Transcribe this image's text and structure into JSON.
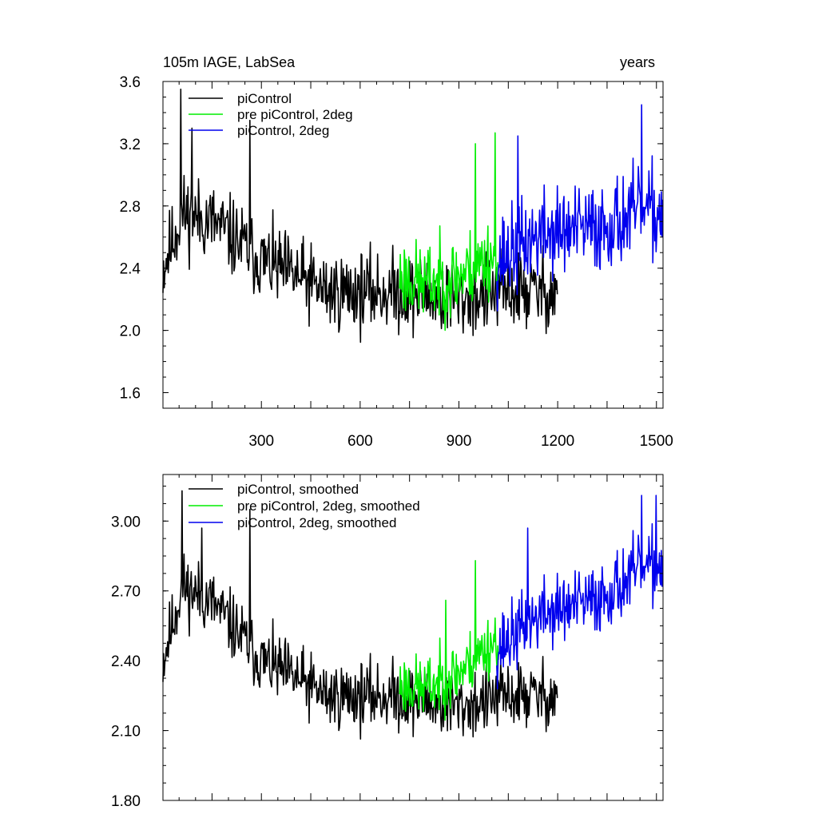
{
  "chart_data": [
    {
      "type": "line",
      "title_left": "105m IAGE, LabSea",
      "title_right": "years",
      "xlim": [
        1,
        1520
      ],
      "ylim": [
        1.5,
        3.6
      ],
      "x_ticks": [
        300,
        600,
        900,
        1200,
        1500
      ],
      "x_tick_labels": [
        "300",
        "600",
        "900",
        "1200",
        "1500"
      ],
      "y_ticks": [
        1.6,
        2.0,
        2.4,
        2.8,
        3.2,
        3.6
      ],
      "y_tick_labels": [
        "1.6",
        "2.0",
        "2.4",
        "2.8",
        "3.2",
        "3.6"
      ],
      "legend": [
        "piControl",
        "pre piControl, 2deg",
        "piControl, 2deg"
      ],
      "series": [
        {
          "name": "piControl",
          "color": "#000000",
          "x_start": 1,
          "x_end": 1200,
          "seed": 11,
          "trend_x": [
            1,
            60,
            150,
            300,
            500,
            700,
            900,
            1050,
            1200
          ],
          "trend_y": [
            2.4,
            2.75,
            2.7,
            2.45,
            2.25,
            2.25,
            2.2,
            2.25,
            2.25
          ],
          "noise": 0.28,
          "peaks": [
            [
              55,
              3.55
            ],
            [
              265,
              3.35
            ],
            [
              90,
              3.3
            ]
          ]
        },
        {
          "name": "pre piControl, 2deg",
          "color": "#00ee00",
          "x_start": 720,
          "x_end": 1020,
          "seed": 23,
          "trend_x": [
            720,
            800,
            900,
            1020
          ],
          "trend_y": [
            2.35,
            2.3,
            2.35,
            2.5
          ],
          "noise": 0.28,
          "peaks": [
            [
              1010,
              3.27
            ],
            [
              950,
              3.2
            ]
          ]
        },
        {
          "name": "piControl, 2deg",
          "color": "#0000ee",
          "x_start": 1015,
          "x_end": 1520,
          "seed": 37,
          "trend_x": [
            1015,
            1150,
            1300,
            1450,
            1520
          ],
          "trend_y": [
            2.45,
            2.62,
            2.65,
            2.75,
            2.75
          ],
          "noise": 0.32,
          "peaks": [
            [
              1455,
              3.45
            ],
            [
              1080,
              3.25
            ]
          ]
        }
      ]
    },
    {
      "type": "line",
      "xlim": [
        1,
        1520
      ],
      "ylim": [
        1.8,
        3.2
      ],
      "y_ticks": [
        1.8,
        2.1,
        2.4,
        2.7,
        3.0
      ],
      "y_tick_labels": [
        "1.80",
        "2.10",
        "2.40",
        "2.70",
        "3.00"
      ],
      "legend": [
        "piControl, smoothed",
        "pre piControl, 2deg, smoothed",
        "piControl, 2deg, smoothed"
      ],
      "series": [
        {
          "name": "piControl, smoothed",
          "color": "#000000",
          "x_start": 1,
          "x_end": 1200,
          "seed": 11,
          "trend_x": [
            1,
            60,
            150,
            300,
            500,
            700,
            900,
            1050,
            1200
          ],
          "trend_y": [
            2.4,
            2.72,
            2.65,
            2.4,
            2.25,
            2.25,
            2.2,
            2.25,
            2.25
          ],
          "noise": 0.16,
          "peaks": [
            [
              60,
              3.13
            ],
            [
              265,
              3.05
            ],
            [
              120,
              2.97
            ]
          ]
        },
        {
          "name": "pre piControl, 2deg, smoothed",
          "color": "#00ee00",
          "x_start": 720,
          "x_end": 1020,
          "seed": 23,
          "trend_x": [
            720,
            800,
            900,
            1020
          ],
          "trend_y": [
            2.3,
            2.28,
            2.35,
            2.5
          ],
          "noise": 0.15,
          "peaks": [
            [
              950,
              2.83
            ],
            [
              860,
              2.66
            ]
          ]
        },
        {
          "name": "piControl, 2deg, smoothed",
          "color": "#0000ee",
          "x_start": 1015,
          "x_end": 1520,
          "seed": 37,
          "trend_x": [
            1015,
            1150,
            1300,
            1450,
            1520
          ],
          "trend_y": [
            2.45,
            2.6,
            2.65,
            2.78,
            2.8
          ],
          "noise": 0.17,
          "peaks": [
            [
              1455,
              3.11
            ],
            [
              1500,
              3.11
            ],
            [
              1110,
              2.97
            ]
          ]
        }
      ]
    }
  ]
}
